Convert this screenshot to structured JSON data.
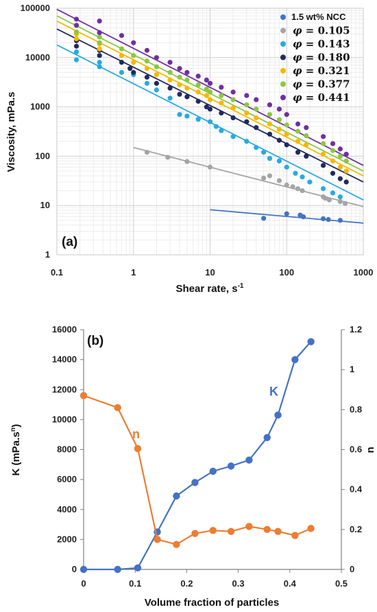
{
  "chart_data": [
    {
      "type": "scatter",
      "panel_label": "(a)",
      "xlabel": "Shear rate, s",
      "xlabel_sup": "-1",
      "ylabel": "Viscosity, mPa.s",
      "xscale": "log",
      "yscale": "log",
      "xlim": [
        0.1,
        1000
      ],
      "ylim": [
        1,
        100000
      ],
      "xticks": [
        "0.1",
        "1",
        "10",
        "100",
        "1000"
      ],
      "yticks": [
        "1",
        "10",
        "100",
        "1000",
        "10000",
        "100000"
      ],
      "grid": true,
      "legend_position": "top-right",
      "series": [
        {
          "name": "1.5 wt% NCC",
          "color": "#4472c4",
          "fit_line": [
            [
              10,
              8.2
            ],
            [
              1000,
              4.4
            ]
          ],
          "points": [
            [
              50,
              5.5
            ],
            [
              100,
              6.8
            ],
            [
              150,
              6.4
            ],
            [
              165,
              5.9
            ],
            [
              300,
              5.4
            ],
            [
              350,
              5.2
            ],
            [
              500,
              5.0
            ]
          ]
        },
        {
          "name": "φ = 0.105",
          "color": "#a5a5a5",
          "fit_line": [
            [
              1,
              150
            ],
            [
              1000,
              9.5
            ]
          ],
          "points": [
            [
              1.5,
              120
            ],
            [
              2.8,
              95
            ],
            [
              5,
              78
            ],
            [
              10,
              60
            ],
            [
              50,
              36
            ],
            [
              60,
              40
            ],
            [
              80,
              32
            ],
            [
              100,
              26
            ],
            [
              120,
              24
            ],
            [
              140,
              22
            ],
            [
              160,
              20
            ],
            [
              300,
              15
            ],
            [
              320,
              14
            ],
            [
              360,
              13
            ],
            [
              500,
              12
            ],
            [
              580,
              11
            ]
          ]
        },
        {
          "name": "φ = 0.143",
          "color": "#27aae1",
          "fit_line": [
            [
              0.1,
              18000
            ],
            [
              1000,
              13
            ]
          ],
          "points": [
            [
              0.18,
              13000
            ],
            [
              0.18,
              9000
            ],
            [
              0.36,
              8000
            ],
            [
              0.36,
              6500
            ],
            [
              0.7,
              5000
            ],
            [
              1,
              4500
            ],
            [
              1.5,
              3000
            ],
            [
              2,
              2200
            ],
            [
              3,
              1500
            ],
            [
              4,
              700
            ],
            [
              5,
              650
            ],
            [
              7,
              560
            ],
            [
              10,
              500
            ],
            [
              12,
              400
            ],
            [
              14,
              330
            ],
            [
              20,
              250
            ],
            [
              30,
              200
            ],
            [
              40,
              150
            ],
            [
              50,
              120
            ],
            [
              60,
              90
            ],
            [
              80,
              80
            ],
            [
              100,
              60
            ],
            [
              130,
              45
            ],
            [
              160,
              38
            ],
            [
              200,
              30
            ],
            [
              300,
              22
            ],
            [
              400,
              18
            ],
            [
              500,
              15
            ]
          ]
        },
        {
          "name": "φ = 0.180",
          "color": "#1f2b5e",
          "fit_line": [
            [
              0.1,
              38000
            ],
            [
              1000,
              30
            ]
          ],
          "points": [
            [
              0.18,
              22000
            ],
            [
              0.18,
              17000
            ],
            [
              0.36,
              14000
            ],
            [
              0.36,
              11000
            ],
            [
              0.7,
              8000
            ],
            [
              0.9,
              6000
            ],
            [
              1,
              5000
            ],
            [
              1.5,
              4000
            ],
            [
              2,
              3000
            ],
            [
              3,
              2400
            ],
            [
              4,
              1800
            ],
            [
              5,
              1600
            ],
            [
              7,
              1300
            ],
            [
              9,
              1000
            ],
            [
              10,
              900
            ],
            [
              14,
              750
            ],
            [
              20,
              600
            ],
            [
              30,
              500
            ],
            [
              40,
              380
            ],
            [
              60,
              280
            ],
            [
              80,
              210
            ],
            [
              100,
              170
            ],
            [
              140,
              120
            ],
            [
              180,
              100
            ],
            [
              300,
              65
            ],
            [
              400,
              45
            ],
            [
              500,
              35
            ],
            [
              600,
              30
            ]
          ]
        },
        {
          "name": "φ = 0.321",
          "color": "#f5b800",
          "fit_line": [
            [
              0.1,
              55000
            ],
            [
              1000,
              40
            ]
          ],
          "points": [
            [
              0.18,
              30000
            ],
            [
              0.18,
              24000
            ],
            [
              0.36,
              19000
            ],
            [
              0.36,
              15000
            ],
            [
              0.7,
              11000
            ],
            [
              1,
              8000
            ],
            [
              1.5,
              6000
            ],
            [
              2,
              4500
            ],
            [
              3,
              3500
            ],
            [
              4,
              2800
            ],
            [
              5,
              2400
            ],
            [
              7,
              2000
            ],
            [
              9,
              1700
            ],
            [
              10,
              1400
            ],
            [
              14,
              1200
            ],
            [
              20,
              950
            ],
            [
              30,
              750
            ],
            [
              40,
              600
            ],
            [
              60,
              450
            ],
            [
              80,
              350
            ],
            [
              100,
              280
            ],
            [
              140,
              200
            ],
            [
              180,
              170
            ],
            [
              300,
              110
            ],
            [
              400,
              80
            ],
            [
              500,
              60
            ],
            [
              600,
              50
            ]
          ]
        },
        {
          "name": "φ = 0.377",
          "color": "#8dc63f",
          "fit_line": [
            [
              0.1,
              70000
            ],
            [
              1000,
              50
            ]
          ],
          "points": [
            [
              0.18,
              45000
            ],
            [
              0.18,
              33000
            ],
            [
              0.36,
              26000
            ],
            [
              0.36,
              20000
            ],
            [
              0.7,
              15000
            ],
            [
              1,
              11000
            ],
            [
              1.5,
              8500
            ],
            [
              2,
              6500
            ],
            [
              3,
              5000
            ],
            [
              4,
              4000
            ],
            [
              5,
              3500
            ],
            [
              7,
              2800
            ],
            [
              9,
              2300
            ],
            [
              10,
              2000
            ],
            [
              14,
              1700
            ],
            [
              20,
              1400
            ],
            [
              30,
              1100
            ],
            [
              40,
              900
            ],
            [
              60,
              700
            ],
            [
              80,
              550
            ],
            [
              100,
              430
            ],
            [
              140,
              320
            ],
            [
              180,
              260
            ],
            [
              300,
              180
            ],
            [
              400,
              130
            ],
            [
              500,
              100
            ],
            [
              600,
              80
            ]
          ]
        },
        {
          "name": "φ = 0.441",
          "color": "#7030a0",
          "fit_line": [
            [
              0.1,
              95000
            ],
            [
              1000,
              65
            ]
          ],
          "points": [
            [
              0.18,
              60000
            ],
            [
              0.18,
              45000
            ],
            [
              0.36,
              55000
            ],
            [
              0.36,
              32000
            ],
            [
              0.7,
              28000
            ],
            [
              1,
              20000
            ],
            [
              1.5,
              14000
            ],
            [
              2,
              10000
            ],
            [
              3,
              8000
            ],
            [
              4,
              6000
            ],
            [
              5,
              5000
            ],
            [
              7,
              4200
            ],
            [
              9,
              3500
            ],
            [
              10,
              3000
            ],
            [
              14,
              2500
            ],
            [
              20,
              2000
            ],
            [
              30,
              1700
            ],
            [
              40,
              1400
            ],
            [
              60,
              1100
            ],
            [
              80,
              900
            ],
            [
              100,
              700
            ],
            [
              140,
              450
            ],
            [
              180,
              380
            ],
            [
              300,
              250
            ],
            [
              400,
              180
            ],
            [
              500,
              140
            ],
            [
              600,
              110
            ]
          ]
        }
      ]
    },
    {
      "type": "line",
      "panel_label": "(b)",
      "xlabel": "Volume fraction of particles",
      "ylabel_left": "K (mPa.s",
      "ylabel_left_sup": "n",
      "ylabel_left_close": ")",
      "ylabel_right": "n",
      "xlim": [
        0,
        0.5
      ],
      "ylim_left": [
        0,
        16000
      ],
      "ylim_right": [
        0,
        1.2
      ],
      "xticks": [
        "0",
        "0.1",
        "0.2",
        "0.3",
        "0.4",
        "0.5"
      ],
      "yticks_left": [
        "0",
        "2000",
        "4000",
        "6000",
        "8000",
        "10000",
        "12000",
        "14000",
        "16000"
      ],
      "yticks_right": [
        "0",
        "0.2",
        "0.4",
        "0.6",
        "0.8",
        "1",
        "1.2"
      ],
      "series": [
        {
          "name": "K",
          "color": "#4472c4",
          "axis": "left",
          "x": [
            0,
            0.066,
            0.105,
            0.143,
            0.18,
            0.216,
            0.251,
            0.286,
            0.321,
            0.356,
            0.377,
            0.41,
            0.441
          ],
          "values": [
            0,
            0,
            100,
            2500,
            4900,
            5800,
            6550,
            6900,
            7300,
            8800,
            10300,
            14000,
            15200
          ]
        },
        {
          "name": "n",
          "color": "#ed7d31",
          "axis": "right",
          "x": [
            0,
            0.066,
            0.105,
            0.143,
            0.18,
            0.216,
            0.251,
            0.286,
            0.321,
            0.356,
            0.377,
            0.41,
            0.441
          ],
          "values": [
            0.87,
            0.81,
            0.605,
            0.15,
            0.125,
            0.18,
            0.195,
            0.19,
            0.215,
            0.2,
            0.19,
            0.17,
            0.205
          ]
        }
      ]
    }
  ]
}
